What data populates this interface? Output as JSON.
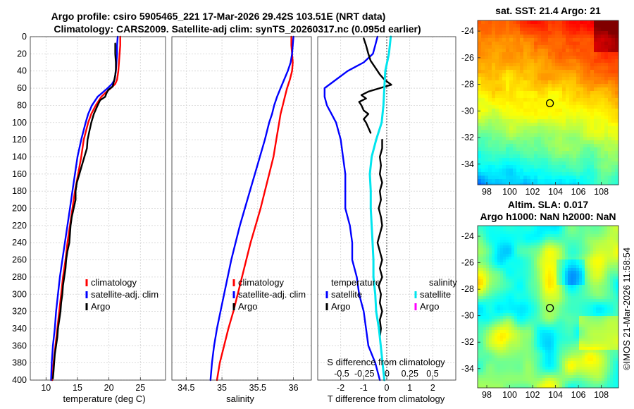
{
  "header": {
    "title_line1": "Argo profile: csiro 5905465_221 17-Mar-2026 29.42S 103.51E (NRT data)",
    "title_line2": "Climatology: CARS2009. Satellite-adj clim: synTS_20260317.nc (0.095d earlier)",
    "sst_title": "sat. SST: 21.4 Argo: 21",
    "sla_title_line1": "Altim. SLA: 0.017",
    "sla_title_line2": "Argo h1000: NaN h2000: NaN",
    "timestamp": "©IMOS 21-Mar-2026 11:58:54"
  },
  "depth_axis": {
    "ylim": [
      0,
      400
    ],
    "ticks": [
      0,
      20,
      40,
      60,
      80,
      100,
      120,
      140,
      160,
      180,
      200,
      220,
      240,
      260,
      280,
      300,
      320,
      340,
      360,
      380,
      400
    ],
    "labels": [
      "0",
      "20",
      "40",
      "60",
      "80",
      "100",
      "120",
      "140",
      "160",
      "180",
      "200",
      "220",
      "240",
      "260",
      "280",
      "300",
      "320",
      "340",
      "360",
      "380",
      "400"
    ]
  },
  "colors": {
    "climatology": "#ff0000",
    "satellite": "#0000ff",
    "argo": "#000000",
    "sal_satellite": "#00e5ee",
    "sal_argo": "#ff00ff"
  },
  "chart_data": [
    {
      "type": "line",
      "id": "temperature",
      "xlabel": "temperature (deg C)",
      "xlim": [
        7.5,
        29
      ],
      "xticks": [
        10,
        15,
        20,
        25
      ],
      "xticklabels": [
        "10",
        "15",
        "20",
        "25"
      ],
      "legend": [
        "climatology",
        "satellite-adj. clim",
        "Argo"
      ],
      "series": [
        {
          "name": "climatology",
          "color": "#ff0000",
          "depth": [
            0,
            10,
            20,
            30,
            40,
            50,
            55,
            60,
            65,
            70,
            80,
            90,
            100,
            120,
            140,
            160,
            180,
            200,
            220,
            240,
            260,
            280,
            300,
            320,
            340,
            360,
            380,
            400
          ],
          "values": [
            21.8,
            21.8,
            21.7,
            21.6,
            21.5,
            21.3,
            21.0,
            20.3,
            19.5,
            18.8,
            17.9,
            17.2,
            16.7,
            16.0,
            15.6,
            15.1,
            14.6,
            14.2,
            13.8,
            13.4,
            13.1,
            12.7,
            12.4,
            12.1,
            11.8,
            11.5,
            11.2,
            11.0
          ]
        },
        {
          "name": "satellite-adj. clim",
          "color": "#0000ff",
          "depth": [
            0,
            10,
            20,
            30,
            40,
            50,
            55,
            60,
            65,
            70,
            80,
            90,
            100,
            120,
            140,
            160,
            180,
            200,
            220,
            240,
            260,
            280,
            300,
            320,
            340,
            360,
            380,
            400
          ],
          "values": [
            21.4,
            21.3,
            21.3,
            21.2,
            21.1,
            20.9,
            20.5,
            19.8,
            19.0,
            18.2,
            17.3,
            16.7,
            16.3,
            15.6,
            15.0,
            14.6,
            14.2,
            13.8,
            13.4,
            13.0,
            12.6,
            12.2,
            11.9,
            11.6,
            11.4,
            11.1,
            10.9,
            10.8
          ]
        },
        {
          "name": "Argo",
          "color": "#000000",
          "depth": [
            8,
            20,
            30,
            38,
            45,
            52,
            58,
            62,
            66,
            70,
            74,
            80,
            90,
            100,
            110,
            120,
            130,
            140,
            150,
            160,
            170,
            180,
            190,
            200,
            210,
            220,
            230,
            240,
            250,
            260,
            270,
            280,
            290,
            300,
            310,
            320,
            330,
            340,
            350,
            360,
            370,
            380,
            390,
            398
          ],
          "values": [
            21.0,
            21.0,
            21.1,
            21.1,
            21.0,
            20.8,
            20.6,
            19.9,
            19.6,
            19.4,
            18.6,
            18.2,
            17.6,
            17.2,
            16.9,
            16.6,
            16.5,
            16.1,
            15.7,
            15.3,
            14.9,
            14.7,
            14.7,
            14.4,
            14.1,
            13.9,
            13.8,
            13.7,
            13.4,
            13.2,
            13.1,
            12.9,
            12.7,
            12.6,
            12.4,
            12.3,
            12.1,
            11.9,
            11.8,
            11.6,
            11.4,
            11.3,
            11.2,
            11.1
          ]
        }
      ]
    },
    {
      "type": "line",
      "id": "salinity",
      "xlabel": "salinity",
      "xlim": [
        34.3,
        36.25
      ],
      "xticks": [
        34.5,
        35,
        35.5,
        36
      ],
      "xticklabels": [
        "34.5",
        "35",
        "35.5",
        "36"
      ],
      "legend": [
        "climatology",
        "satellite-adj. clim",
        "Argo"
      ],
      "series": [
        {
          "name": "climatology",
          "color": "#ff0000",
          "depth": [
            0,
            10,
            20,
            30,
            40,
            50,
            60,
            70,
            80,
            90,
            100,
            120,
            140,
            160,
            180,
            200,
            220,
            240,
            260,
            280,
            300,
            320,
            340,
            360,
            380,
            400
          ],
          "values": [
            35.97,
            35.97,
            35.98,
            35.99,
            35.98,
            35.95,
            35.91,
            35.88,
            35.85,
            35.82,
            35.8,
            35.76,
            35.72,
            35.66,
            35.6,
            35.54,
            35.47,
            35.4,
            35.34,
            35.28,
            35.22,
            35.16,
            35.09,
            35.03,
            34.97,
            34.93
          ]
        },
        {
          "name": "satellite-adj. clim",
          "color": "#0000ff",
          "depth": [
            0,
            10,
            20,
            30,
            40,
            50,
            60,
            70,
            80,
            90,
            100,
            120,
            140,
            160,
            180,
            200,
            220,
            240,
            260,
            280,
            300,
            320,
            340,
            360,
            380,
            400
          ],
          "values": [
            36.0,
            35.99,
            35.98,
            35.96,
            35.92,
            35.87,
            35.82,
            35.77,
            35.73,
            35.7,
            35.66,
            35.6,
            35.53,
            35.46,
            35.39,
            35.32,
            35.25,
            35.19,
            35.13,
            35.08,
            35.03,
            34.98,
            34.93,
            34.89,
            34.86,
            34.84
          ]
        }
      ]
    },
    {
      "type": "line",
      "id": "difference",
      "xlabel": "T difference from climatology",
      "xlabel_top": "S difference from climatology",
      "xlim": [
        -3,
        3
      ],
      "xticks": [
        -2,
        -1,
        0,
        1,
        2
      ],
      "xticklabels": [
        "-2",
        "-1",
        "0",
        "1",
        "2"
      ],
      "sticks": [
        -0.5,
        -0.25,
        0,
        0.25,
        0.5
      ],
      "sticklabels": [
        "-0.5",
        "-0.25",
        "0",
        "0.25",
        "0.5"
      ],
      "legend_temperature_header": "temperature",
      "legend_salinity_header": "salinity",
      "legend_temperature": [
        "satellite",
        "Argo"
      ],
      "legend_salinity": [
        "satellite",
        "Argo"
      ],
      "series": [
        {
          "name": "temperature satellite",
          "color": "#0000ff",
          "depth": [
            0,
            10,
            20,
            30,
            40,
            50,
            60,
            70,
            80,
            90,
            100,
            110,
            120,
            140,
            160,
            180,
            200,
            220,
            240,
            260,
            280,
            300,
            320,
            340,
            360,
            380,
            400
          ],
          "values": [
            -0.4,
            -0.5,
            -0.6,
            -1.0,
            -1.7,
            -2.2,
            -2.7,
            -2.7,
            -2.6,
            -2.4,
            -2.2,
            -2.1,
            -2.0,
            -1.9,
            -1.8,
            -1.8,
            -1.8,
            -1.6,
            -1.5,
            -1.5,
            -1.3,
            -1.2,
            -1.0,
            -0.9,
            -0.8,
            -0.5,
            -0.3
          ]
        },
        {
          "name": "temperature Argo",
          "color": "#000000",
          "depth": [
            2,
            10,
            20,
            28,
            36,
            44,
            50,
            56,
            60,
            64,
            68,
            72,
            76,
            80,
            86,
            90,
            96,
            100,
            106,
            112
          ],
          "values": [
            -1.0,
            -0.9,
            -0.8,
            -0.7,
            -0.5,
            -0.3,
            -0.1,
            0.2,
            -0.3,
            -0.8,
            -1.1,
            -0.9,
            -1.2,
            -1.1,
            -1.0,
            -0.8,
            -1.0,
            -0.9,
            -0.8,
            -0.7
          ]
        },
        {
          "name": "temperature Argo deep",
          "color": "#000000",
          "depth": [
            120,
            130,
            140,
            150,
            160,
            170,
            180,
            190,
            200,
            210,
            220,
            230,
            240,
            250,
            260,
            270,
            280,
            290,
            300,
            310,
            320,
            330,
            340,
            350
          ],
          "values": [
            -0.2,
            -0.2,
            -0.3,
            -0.25,
            -0.3,
            -0.2,
            -0.3,
            -0.25,
            -0.35,
            -0.25,
            -0.2,
            -0.3,
            -0.4,
            -0.3,
            -0.2,
            -0.3,
            -0.2,
            -0.35,
            -0.25,
            -0.3,
            -0.2,
            -0.3,
            -0.25,
            -0.3
          ]
        },
        {
          "name": "salinity satellite",
          "color": "#00e5ee",
          "depth": [
            0,
            10,
            20,
            30,
            40,
            60,
            80,
            100,
            120,
            140,
            160,
            180,
            200,
            220,
            240,
            260,
            280,
            300,
            320,
            340,
            360,
            380,
            400
          ],
          "values": [
            0.04,
            0.03,
            0.02,
            0.0,
            -0.02,
            -0.03,
            -0.04,
            -0.06,
            -0.12,
            -0.17,
            -0.19,
            -0.18,
            -0.18,
            -0.17,
            -0.16,
            -0.15,
            -0.15,
            -0.13,
            -0.12,
            -0.09,
            -0.07,
            -0.05,
            -0.03
          ]
        }
      ]
    }
  ],
  "maps": {
    "sst": {
      "xticks": [
        "98",
        "100",
        "102",
        "104",
        "106",
        "108"
      ],
      "yticks": [
        "-24",
        "-26",
        "-28",
        "-30",
        "-32",
        "-34"
      ],
      "marker": [
        103.51,
        -29.42
      ]
    },
    "sla": {
      "xticks": [
        "98",
        "100",
        "102",
        "104",
        "106",
        "108"
      ],
      "yticks": [
        "-24",
        "-26",
        "-28",
        "-30",
        "-32",
        "-34"
      ],
      "marker": [
        103.51,
        -29.42
      ]
    }
  }
}
